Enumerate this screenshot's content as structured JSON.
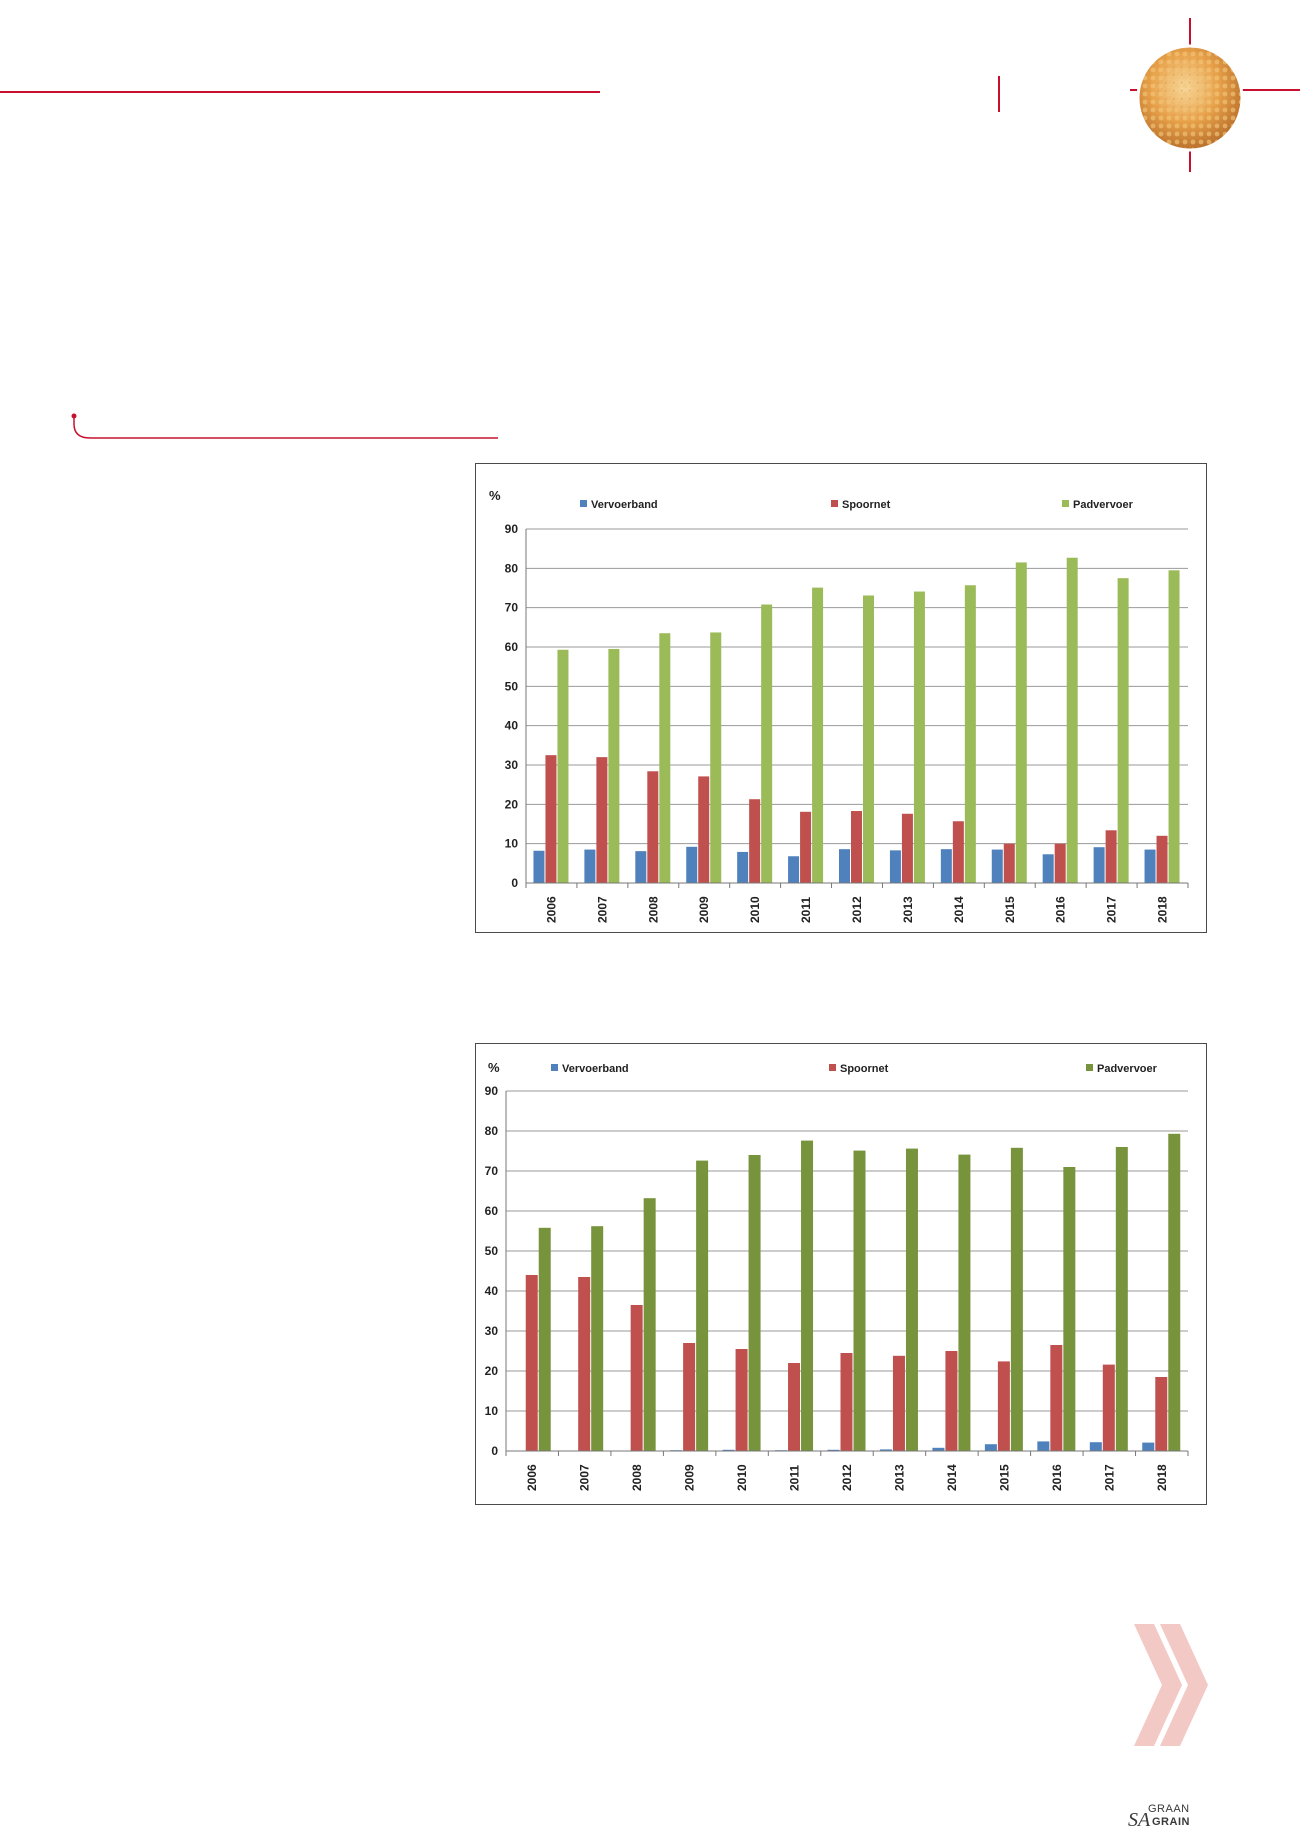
{
  "colors": {
    "accent_red": "#c8102e",
    "vervoerband": "#4f81bd",
    "spoornet": "#c0504d",
    "padvervoer_chart1": "#9bbb59",
    "padvervoer_chart2": "#77933c",
    "chevron": "#f2c9c5"
  },
  "branding": {
    "logo_prefix": "SA",
    "logo_line1": "GRAAN",
    "logo_line2": "GRAIN"
  },
  "chart_data": [
    {
      "type": "bar",
      "ylabel": "%",
      "ylim": [
        0,
        90
      ],
      "yticks": [
        0,
        10,
        20,
        30,
        40,
        50,
        60,
        70,
        80,
        90
      ],
      "grid": true,
      "legend_position": "top",
      "categories": [
        "2006",
        "2007",
        "2008",
        "2009",
        "2010",
        "2011",
        "2012",
        "2013",
        "2014",
        "2015",
        "2016",
        "2017",
        "2018"
      ],
      "series": [
        {
          "name": "Vervoerband",
          "color": "#4f81bd",
          "values": [
            8.2,
            8.5,
            8.1,
            9.2,
            7.9,
            6.8,
            8.6,
            8.3,
            8.6,
            8.5,
            7.3,
            9.1,
            8.5
          ]
        },
        {
          "name": "Spoornet",
          "color": "#c0504d",
          "values": [
            32.5,
            32.0,
            28.4,
            27.1,
            21.3,
            18.1,
            18.3,
            17.6,
            15.7,
            10.0,
            10.0,
            13.4,
            12.0
          ]
        },
        {
          "name": "Padvervoer",
          "color": "#9bbb59",
          "values": [
            59.3,
            59.5,
            63.5,
            63.7,
            70.8,
            75.1,
            73.1,
            74.1,
            75.7,
            81.5,
            82.7,
            77.5,
            79.5
          ]
        }
      ]
    },
    {
      "type": "bar",
      "ylabel": "%",
      "ylim": [
        0,
        90
      ],
      "yticks": [
        0,
        10,
        20,
        30,
        40,
        50,
        60,
        70,
        80,
        90
      ],
      "grid": true,
      "legend_position": "top",
      "categories": [
        "2006",
        "2007",
        "2008",
        "2009",
        "2010",
        "2011",
        "2012",
        "2013",
        "2014",
        "2015",
        "2016",
        "2017",
        "2018"
      ],
      "series": [
        {
          "name": "Vervoerband",
          "color": "#4f81bd",
          "values": [
            0.0,
            0.0,
            0.1,
            0.2,
            0.3,
            0.2,
            0.3,
            0.4,
            0.8,
            1.7,
            2.4,
            2.2,
            2.1
          ]
        },
        {
          "name": "Spoornet",
          "color": "#c0504d",
          "values": [
            44.0,
            43.5,
            36.5,
            27.0,
            25.5,
            22.0,
            24.5,
            23.8,
            25.0,
            22.4,
            26.5,
            21.6,
            18.5
          ]
        },
        {
          "name": "Padvervoer",
          "color": "#77933c",
          "values": [
            55.8,
            56.2,
            63.2,
            72.6,
            74.0,
            77.6,
            75.1,
            75.6,
            74.1,
            75.8,
            71.0,
            76.0,
            79.3
          ]
        }
      ]
    }
  ]
}
